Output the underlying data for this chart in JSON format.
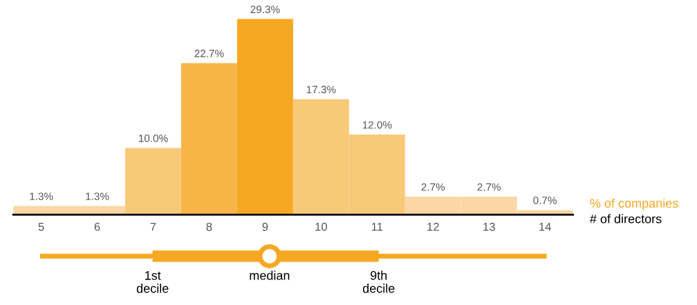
{
  "chart_data": {
    "type": "bar",
    "categories": [
      "5",
      "6",
      "7",
      "8",
      "9",
      "10",
      "11",
      "12",
      "13",
      "14"
    ],
    "values": [
      1.3,
      1.3,
      10.0,
      22.7,
      29.3,
      17.3,
      12.0,
      2.7,
      2.7,
      0.7
    ],
    "colors": [
      "#fad7a5",
      "#fad7a5",
      "#f9c97a",
      "#f7b548",
      "#f7a823",
      "#f9c97a",
      "#f9c97a",
      "#fad7a5",
      "#fad7a5",
      "#fad7a5"
    ],
    "value_labels": [
      "1.3%",
      "1.3%",
      "10.0%",
      "22.7%",
      "29.3%",
      "17.3%",
      "12.0%",
      "2.7%",
      "2.7%",
      "0.7%"
    ],
    "ylabel": "% of companies",
    "xlabel": "# of directors",
    "annotations": [
      "1st\ndecile",
      "median",
      "9th\ndecile"
    ]
  }
}
